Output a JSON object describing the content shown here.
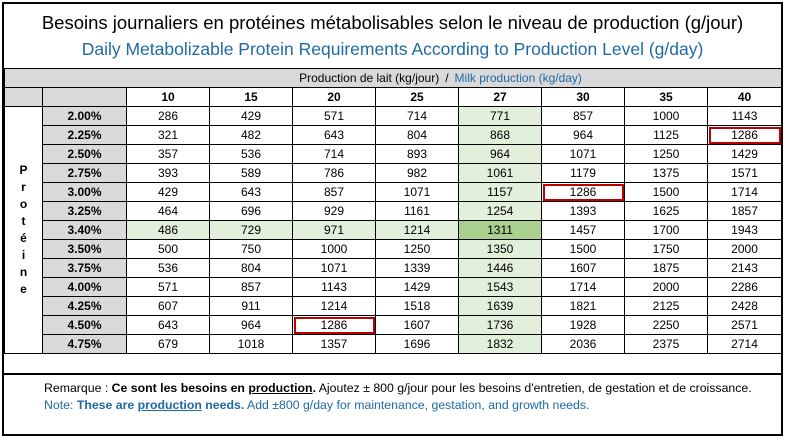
{
  "title": {
    "fr": "Besoins journaliers en protéines métabolisables selon le niveau de production (g/jour)",
    "en": "Daily Metabolizable Protein Requirements According to Production Level (g/day)"
  },
  "production_header": {
    "fr": "Production de lait (kg/jour)",
    "separator": "/",
    "en": "Milk production (kg/day)"
  },
  "side_label": "Protéine",
  "columns": [
    "10",
    "15",
    "20",
    "25",
    "27",
    "30",
    "35",
    "40"
  ],
  "rows": [
    {
      "pct": "2.00%",
      "values": [
        "286",
        "429",
        "571",
        "714",
        "771",
        "857",
        "1000",
        "1143"
      ]
    },
    {
      "pct": "2.25%",
      "values": [
        "321",
        "482",
        "643",
        "804",
        "868",
        "964",
        "1125",
        "1286"
      ]
    },
    {
      "pct": "2.50%",
      "values": [
        "357",
        "536",
        "714",
        "893",
        "964",
        "1071",
        "1250",
        "1429"
      ]
    },
    {
      "pct": "2.75%",
      "values": [
        "393",
        "589",
        "786",
        "982",
        "1061",
        "1179",
        "1375",
        "1571"
      ]
    },
    {
      "pct": "3.00%",
      "values": [
        "429",
        "643",
        "857",
        "1071",
        "1157",
        "1286",
        "1500",
        "1714"
      ]
    },
    {
      "pct": "3.25%",
      "values": [
        "464",
        "696",
        "929",
        "1161",
        "1254",
        "1393",
        "1625",
        "1857"
      ]
    },
    {
      "pct": "3.40%",
      "values": [
        "486",
        "729",
        "971",
        "1214",
        "1311",
        "1457",
        "1700",
        "1943"
      ]
    },
    {
      "pct": "3.50%",
      "values": [
        "500",
        "750",
        "1000",
        "1250",
        "1350",
        "1500",
        "1750",
        "2000"
      ]
    },
    {
      "pct": "3.75%",
      "values": [
        "536",
        "804",
        "1071",
        "1339",
        "1446",
        "1607",
        "1875",
        "2143"
      ]
    },
    {
      "pct": "4.00%",
      "values": [
        "571",
        "857",
        "1143",
        "1429",
        "1543",
        "1714",
        "2000",
        "2286"
      ]
    },
    {
      "pct": "4.25%",
      "values": [
        "607",
        "911",
        "1214",
        "1518",
        "1639",
        "1821",
        "2125",
        "2428"
      ]
    },
    {
      "pct": "4.50%",
      "values": [
        "643",
        "964",
        "1286",
        "1607",
        "1736",
        "1928",
        "2250",
        "2571"
      ]
    },
    {
      "pct": "4.75%",
      "values": [
        "679",
        "1018",
        "1357",
        "1696",
        "1832",
        "2036",
        "2375",
        "2714"
      ]
    }
  ],
  "highlight": {
    "column": "27",
    "row": "3.40%",
    "boxed_cells": [
      {
        "row": "2.25%",
        "column": "40"
      },
      {
        "row": "3.00%",
        "column": "30"
      },
      {
        "row": "4.50%",
        "column": "20"
      }
    ],
    "colors": {
      "light_green": "#e2efda",
      "green": "#a9d08e",
      "box_red": "#c00000",
      "header_gray": "#d9d9d9",
      "blue_text": "#1f6aa5"
    }
  },
  "note": {
    "fr": {
      "prefix": "Remarque : ",
      "bold_a": "Ce sont les besoins en ",
      "bold_underline": "production",
      "bold_end": ".",
      "rest": " Ajoutez ± 800 g/jour pour les besoins d'entretien, de gestation et de croissance."
    },
    "en": {
      "prefix": "Note: ",
      "bold_a": "These are ",
      "bold_underline": "production",
      "bold_end": " needs.",
      "rest": " Add ±800 g/day for maintenance, gestation, and growth needs."
    }
  }
}
